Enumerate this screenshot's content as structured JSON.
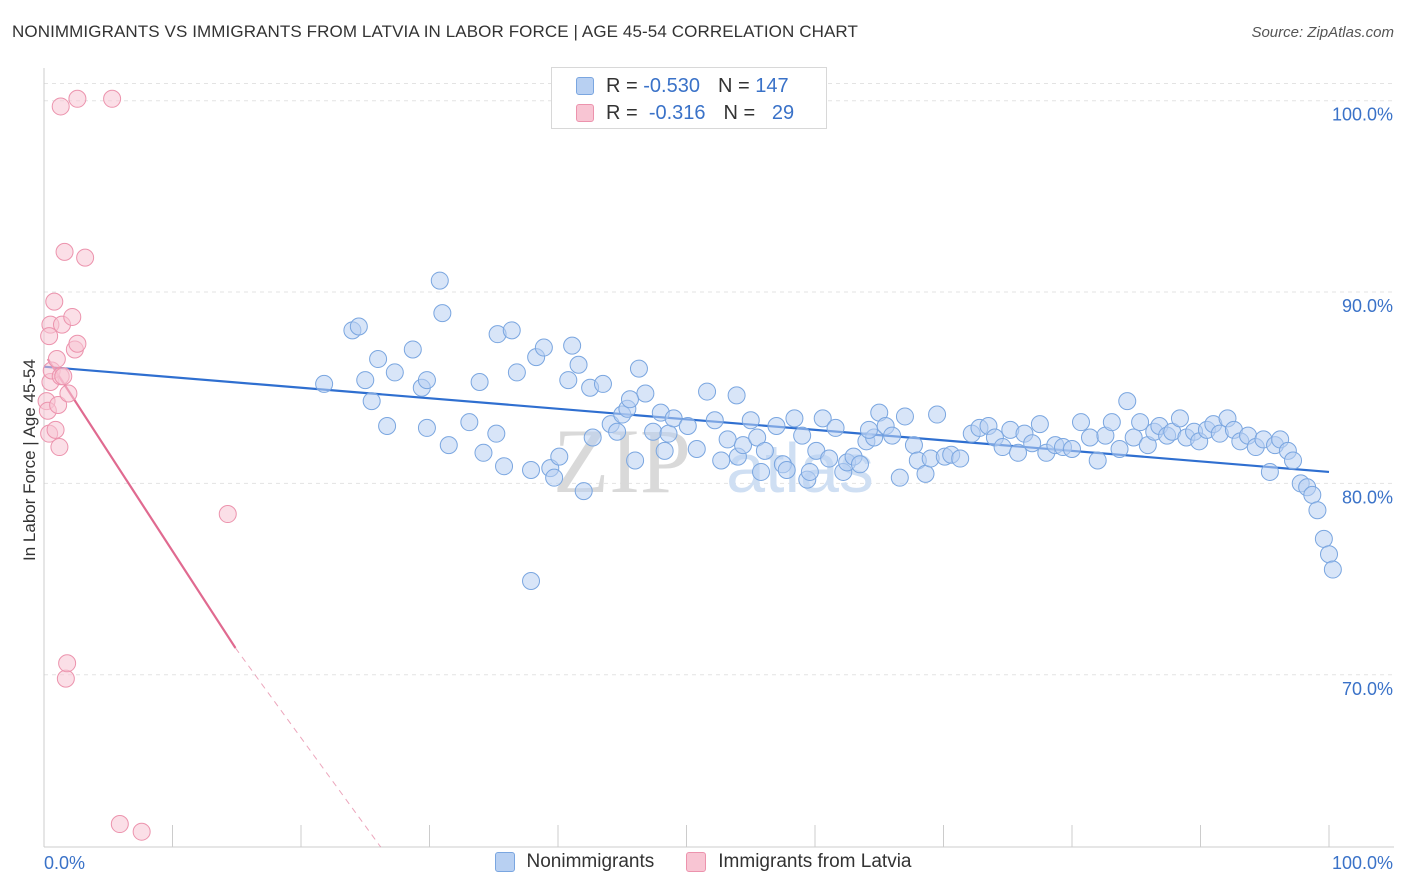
{
  "header": {
    "title": "NONIMMIGRANTS VS IMMIGRANTS FROM LATVIA IN LABOR FORCE | AGE 45-54 CORRELATION CHART",
    "source": "Source: ZipAtlas.com"
  },
  "watermark": {
    "zip": "ZIP",
    "atlas": "atlas"
  },
  "legend_top": {
    "row1": {
      "r_label": "R =",
      "r_value": "-0.530",
      "n_label": "N =",
      "n_value": "147"
    },
    "row2": {
      "r_label": "R =",
      "r_value": "-0.316",
      "n_label": "N =",
      "n_value": "29"
    }
  },
  "colors": {
    "blue_fill": "#b8d0f2",
    "blue_stroke": "#7aa6e0",
    "blue_line": "#2f6fd0",
    "pink_fill": "#f8c5d3",
    "pink_stroke": "#ec93ad",
    "pink_line": "#e06a90",
    "grid": "#e3e3e3",
    "tick_label": "#3a72c8"
  },
  "chart_data": {
    "type": "scatter",
    "title": "NONIMMIGRANTS VS IMMIGRANTS FROM LATVIA IN LABOR FORCE | AGE 45-54 CORRELATION CHART",
    "xlabel": "",
    "ylabel": "In Labor Force | Age 45-54",
    "xlim": [
      0,
      100
    ],
    "ylim": [
      61,
      101.5
    ],
    "x_tick_labels": [
      "0.0%",
      "100.0%"
    ],
    "y_ticks": [
      70,
      80,
      90,
      100
    ],
    "y_tick_labels": [
      "70.0%",
      "80.0%",
      "90.0%",
      "100.0%"
    ],
    "grid": true,
    "legend_position": "bottom",
    "series": [
      {
        "name": "Nonimmigrants",
        "color": "#7aa6e0",
        "r": -0.53,
        "n": 147,
        "trend": {
          "x": [
            0,
            100
          ],
          "y": [
            86.1,
            80.6
          ]
        },
        "points": [
          [
            21.8,
            85.2
          ],
          [
            24.0,
            88.0
          ],
          [
            24.5,
            88.2
          ],
          [
            25.0,
            85.4
          ],
          [
            25.5,
            84.3
          ],
          [
            26.0,
            86.5
          ],
          [
            26.7,
            83.0
          ],
          [
            27.3,
            85.8
          ],
          [
            28.7,
            87.0
          ],
          [
            29.4,
            85.0
          ],
          [
            29.8,
            85.4
          ],
          [
            30.8,
            90.6
          ],
          [
            31.0,
            88.9
          ],
          [
            31.5,
            82.0
          ],
          [
            33.1,
            83.2
          ],
          [
            33.9,
            85.3
          ],
          [
            35.2,
            82.6
          ],
          [
            35.3,
            87.8
          ],
          [
            35.8,
            80.9
          ],
          [
            36.4,
            88.0
          ],
          [
            36.8,
            85.8
          ],
          [
            37.9,
            80.7
          ],
          [
            38.3,
            86.6
          ],
          [
            38.9,
            87.1
          ],
          [
            39.4,
            80.8
          ],
          [
            39.7,
            80.3
          ],
          [
            40.1,
            81.4
          ],
          [
            40.8,
            85.4
          ],
          [
            41.1,
            87.2
          ],
          [
            41.6,
            86.2
          ],
          [
            42.0,
            79.6
          ],
          [
            42.5,
            85.0
          ],
          [
            42.7,
            82.4
          ],
          [
            43.5,
            85.2
          ],
          [
            44.1,
            83.1
          ],
          [
            44.6,
            82.7
          ],
          [
            45.0,
            83.6
          ],
          [
            45.4,
            83.9
          ],
          [
            46.0,
            81.2
          ],
          [
            46.3,
            86.0
          ],
          [
            46.8,
            84.7
          ],
          [
            47.4,
            82.7
          ],
          [
            48.0,
            83.7
          ],
          [
            48.3,
            81.7
          ],
          [
            48.6,
            82.6
          ],
          [
            49.0,
            83.4
          ],
          [
            50.1,
            83.0
          ],
          [
            50.8,
            81.8
          ],
          [
            51.6,
            84.8
          ],
          [
            52.2,
            83.3
          ],
          [
            52.7,
            81.2
          ],
          [
            53.2,
            82.3
          ],
          [
            54.0,
            81.4
          ],
          [
            54.4,
            82.0
          ],
          [
            55.0,
            83.3
          ],
          [
            55.5,
            82.4
          ],
          [
            55.8,
            80.6
          ],
          [
            56.1,
            81.7
          ],
          [
            57.0,
            83.0
          ],
          [
            57.5,
            81.0
          ],
          [
            57.8,
            80.7
          ],
          [
            58.4,
            83.4
          ],
          [
            59.0,
            82.5
          ],
          [
            59.4,
            80.2
          ],
          [
            59.6,
            80.6
          ],
          [
            60.1,
            81.7
          ],
          [
            60.6,
            83.4
          ],
          [
            61.1,
            81.3
          ],
          [
            61.6,
            82.9
          ],
          [
            62.2,
            80.6
          ],
          [
            62.5,
            81.1
          ],
          [
            63.0,
            81.4
          ],
          [
            63.5,
            81.0
          ],
          [
            64.0,
            82.2
          ],
          [
            64.6,
            82.4
          ],
          [
            65.0,
            83.7
          ],
          [
            65.5,
            83.0
          ],
          [
            66.0,
            82.5
          ],
          [
            66.6,
            80.3
          ],
          [
            67.0,
            83.5
          ],
          [
            67.7,
            82.0
          ],
          [
            68.0,
            81.2
          ],
          [
            68.6,
            80.5
          ],
          [
            69.0,
            81.3
          ],
          [
            69.5,
            83.6
          ],
          [
            70.1,
            81.4
          ],
          [
            70.6,
            81.5
          ],
          [
            71.3,
            81.3
          ],
          [
            72.2,
            82.6
          ],
          [
            72.8,
            82.9
          ],
          [
            73.5,
            83.0
          ],
          [
            74.0,
            82.4
          ],
          [
            74.6,
            81.9
          ],
          [
            75.2,
            82.8
          ],
          [
            75.8,
            81.6
          ],
          [
            76.3,
            82.6
          ],
          [
            76.9,
            82.1
          ],
          [
            77.5,
            83.1
          ],
          [
            78.0,
            81.6
          ],
          [
            78.7,
            82.0
          ],
          [
            79.3,
            81.9
          ],
          [
            80.0,
            81.8
          ],
          [
            80.7,
            83.2
          ],
          [
            81.4,
            82.4
          ],
          [
            82.0,
            81.2
          ],
          [
            82.6,
            82.5
          ],
          [
            83.1,
            83.2
          ],
          [
            83.7,
            81.8
          ],
          [
            84.3,
            84.3
          ],
          [
            84.8,
            82.4
          ],
          [
            85.3,
            83.2
          ],
          [
            85.9,
            82.0
          ],
          [
            86.4,
            82.7
          ],
          [
            86.8,
            83.0
          ],
          [
            87.4,
            82.5
          ],
          [
            87.8,
            82.7
          ],
          [
            88.4,
            83.4
          ],
          [
            88.9,
            82.4
          ],
          [
            89.5,
            82.7
          ],
          [
            89.9,
            82.2
          ],
          [
            90.5,
            82.8
          ],
          [
            91.0,
            83.1
          ],
          [
            91.5,
            82.6
          ],
          [
            92.1,
            83.4
          ],
          [
            92.6,
            82.8
          ],
          [
            93.1,
            82.2
          ],
          [
            93.7,
            82.5
          ],
          [
            94.3,
            81.9
          ],
          [
            94.9,
            82.3
          ],
          [
            95.4,
            80.6
          ],
          [
            95.8,
            82.0
          ],
          [
            96.2,
            82.3
          ],
          [
            96.8,
            81.7
          ],
          [
            97.2,
            81.2
          ],
          [
            97.8,
            80.0
          ],
          [
            98.3,
            79.8
          ],
          [
            98.7,
            79.4
          ],
          [
            99.1,
            78.6
          ],
          [
            99.6,
            77.1
          ],
          [
            100.0,
            76.3
          ],
          [
            100.3,
            75.5
          ],
          [
            37.9,
            74.9
          ],
          [
            29.8,
            82.9
          ],
          [
            34.2,
            81.6
          ],
          [
            45.6,
            84.4
          ],
          [
            53.9,
            84.6
          ],
          [
            64.2,
            82.8
          ]
        ]
      },
      {
        "name": "Immigrants from Latvia",
        "color": "#ec93ad",
        "r": -0.316,
        "n": 29,
        "trend_solid": {
          "x": [
            0.3,
            14.9
          ],
          "y": [
            86.5,
            71.4
          ]
        },
        "trend_dashed": {
          "x": [
            14.9,
            26.2
          ],
          "y": [
            71.4,
            61.0
          ]
        },
        "points": [
          [
            0.2,
            84.3
          ],
          [
            0.3,
            83.8
          ],
          [
            0.4,
            82.6
          ],
          [
            0.5,
            85.3
          ],
          [
            0.5,
            88.3
          ],
          [
            0.6,
            85.9
          ],
          [
            0.8,
            89.5
          ],
          [
            0.9,
            82.8
          ],
          [
            1.0,
            86.5
          ],
          [
            1.1,
            84.1
          ],
          [
            1.2,
            81.9
          ],
          [
            1.3,
            85.6
          ],
          [
            1.4,
            88.3
          ],
          [
            1.5,
            85.6
          ],
          [
            1.6,
            92.1
          ],
          [
            1.7,
            69.8
          ],
          [
            1.8,
            70.6
          ],
          [
            1.9,
            84.7
          ],
          [
            2.2,
            88.7
          ],
          [
            2.4,
            87.0
          ],
          [
            2.6,
            87.3
          ],
          [
            3.2,
            91.8
          ],
          [
            1.3,
            99.7
          ],
          [
            2.6,
            100.1
          ],
          [
            5.3,
            100.1
          ],
          [
            5.9,
            62.2
          ],
          [
            7.6,
            61.8
          ],
          [
            14.3,
            78.4
          ],
          [
            0.4,
            87.7
          ]
        ]
      }
    ]
  }
}
